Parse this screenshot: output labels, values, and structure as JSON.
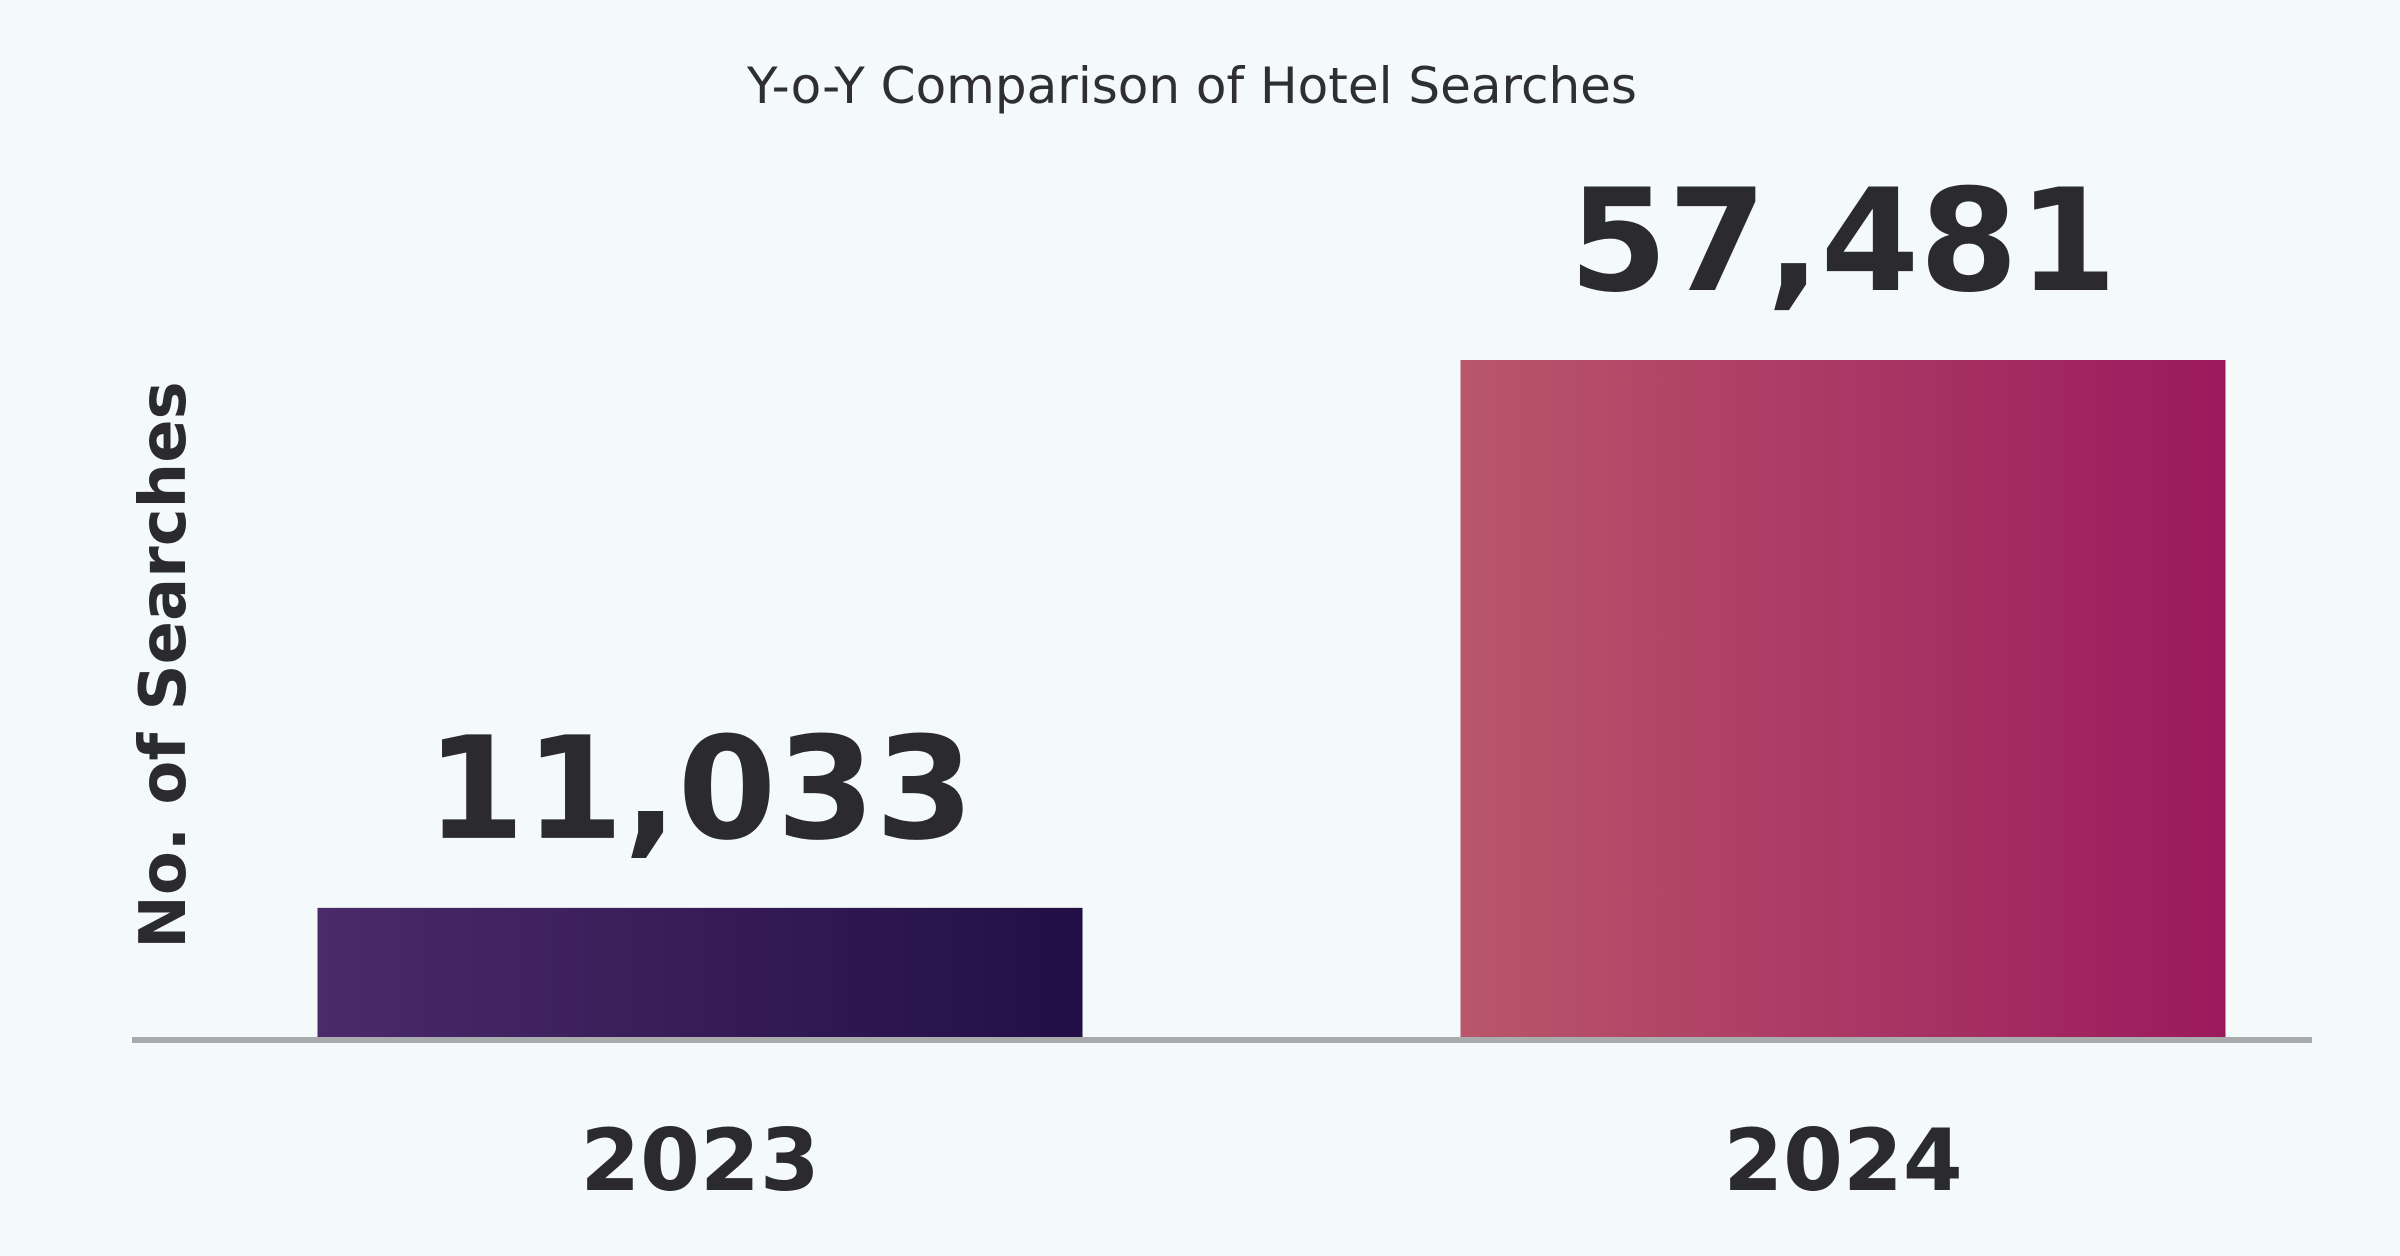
{
  "chart_data": {
    "type": "bar",
    "title": "Y-o-Y Comparison of Hotel Searches",
    "xlabel": "",
    "ylabel": "No. of Searches",
    "categories": [
      "2023",
      "2024"
    ],
    "values": [
      11033,
      57481
    ],
    "value_labels": [
      "11,033",
      "57,481"
    ],
    "ylim": [
      0,
      57481
    ],
    "grid": false,
    "legend": "none",
    "bar_gradients": [
      [
        "#4b2a6a",
        "#220f45"
      ],
      [
        "#b9566a",
        "#9b1a5e"
      ]
    ],
    "baseline_color": "#a9abad"
  }
}
